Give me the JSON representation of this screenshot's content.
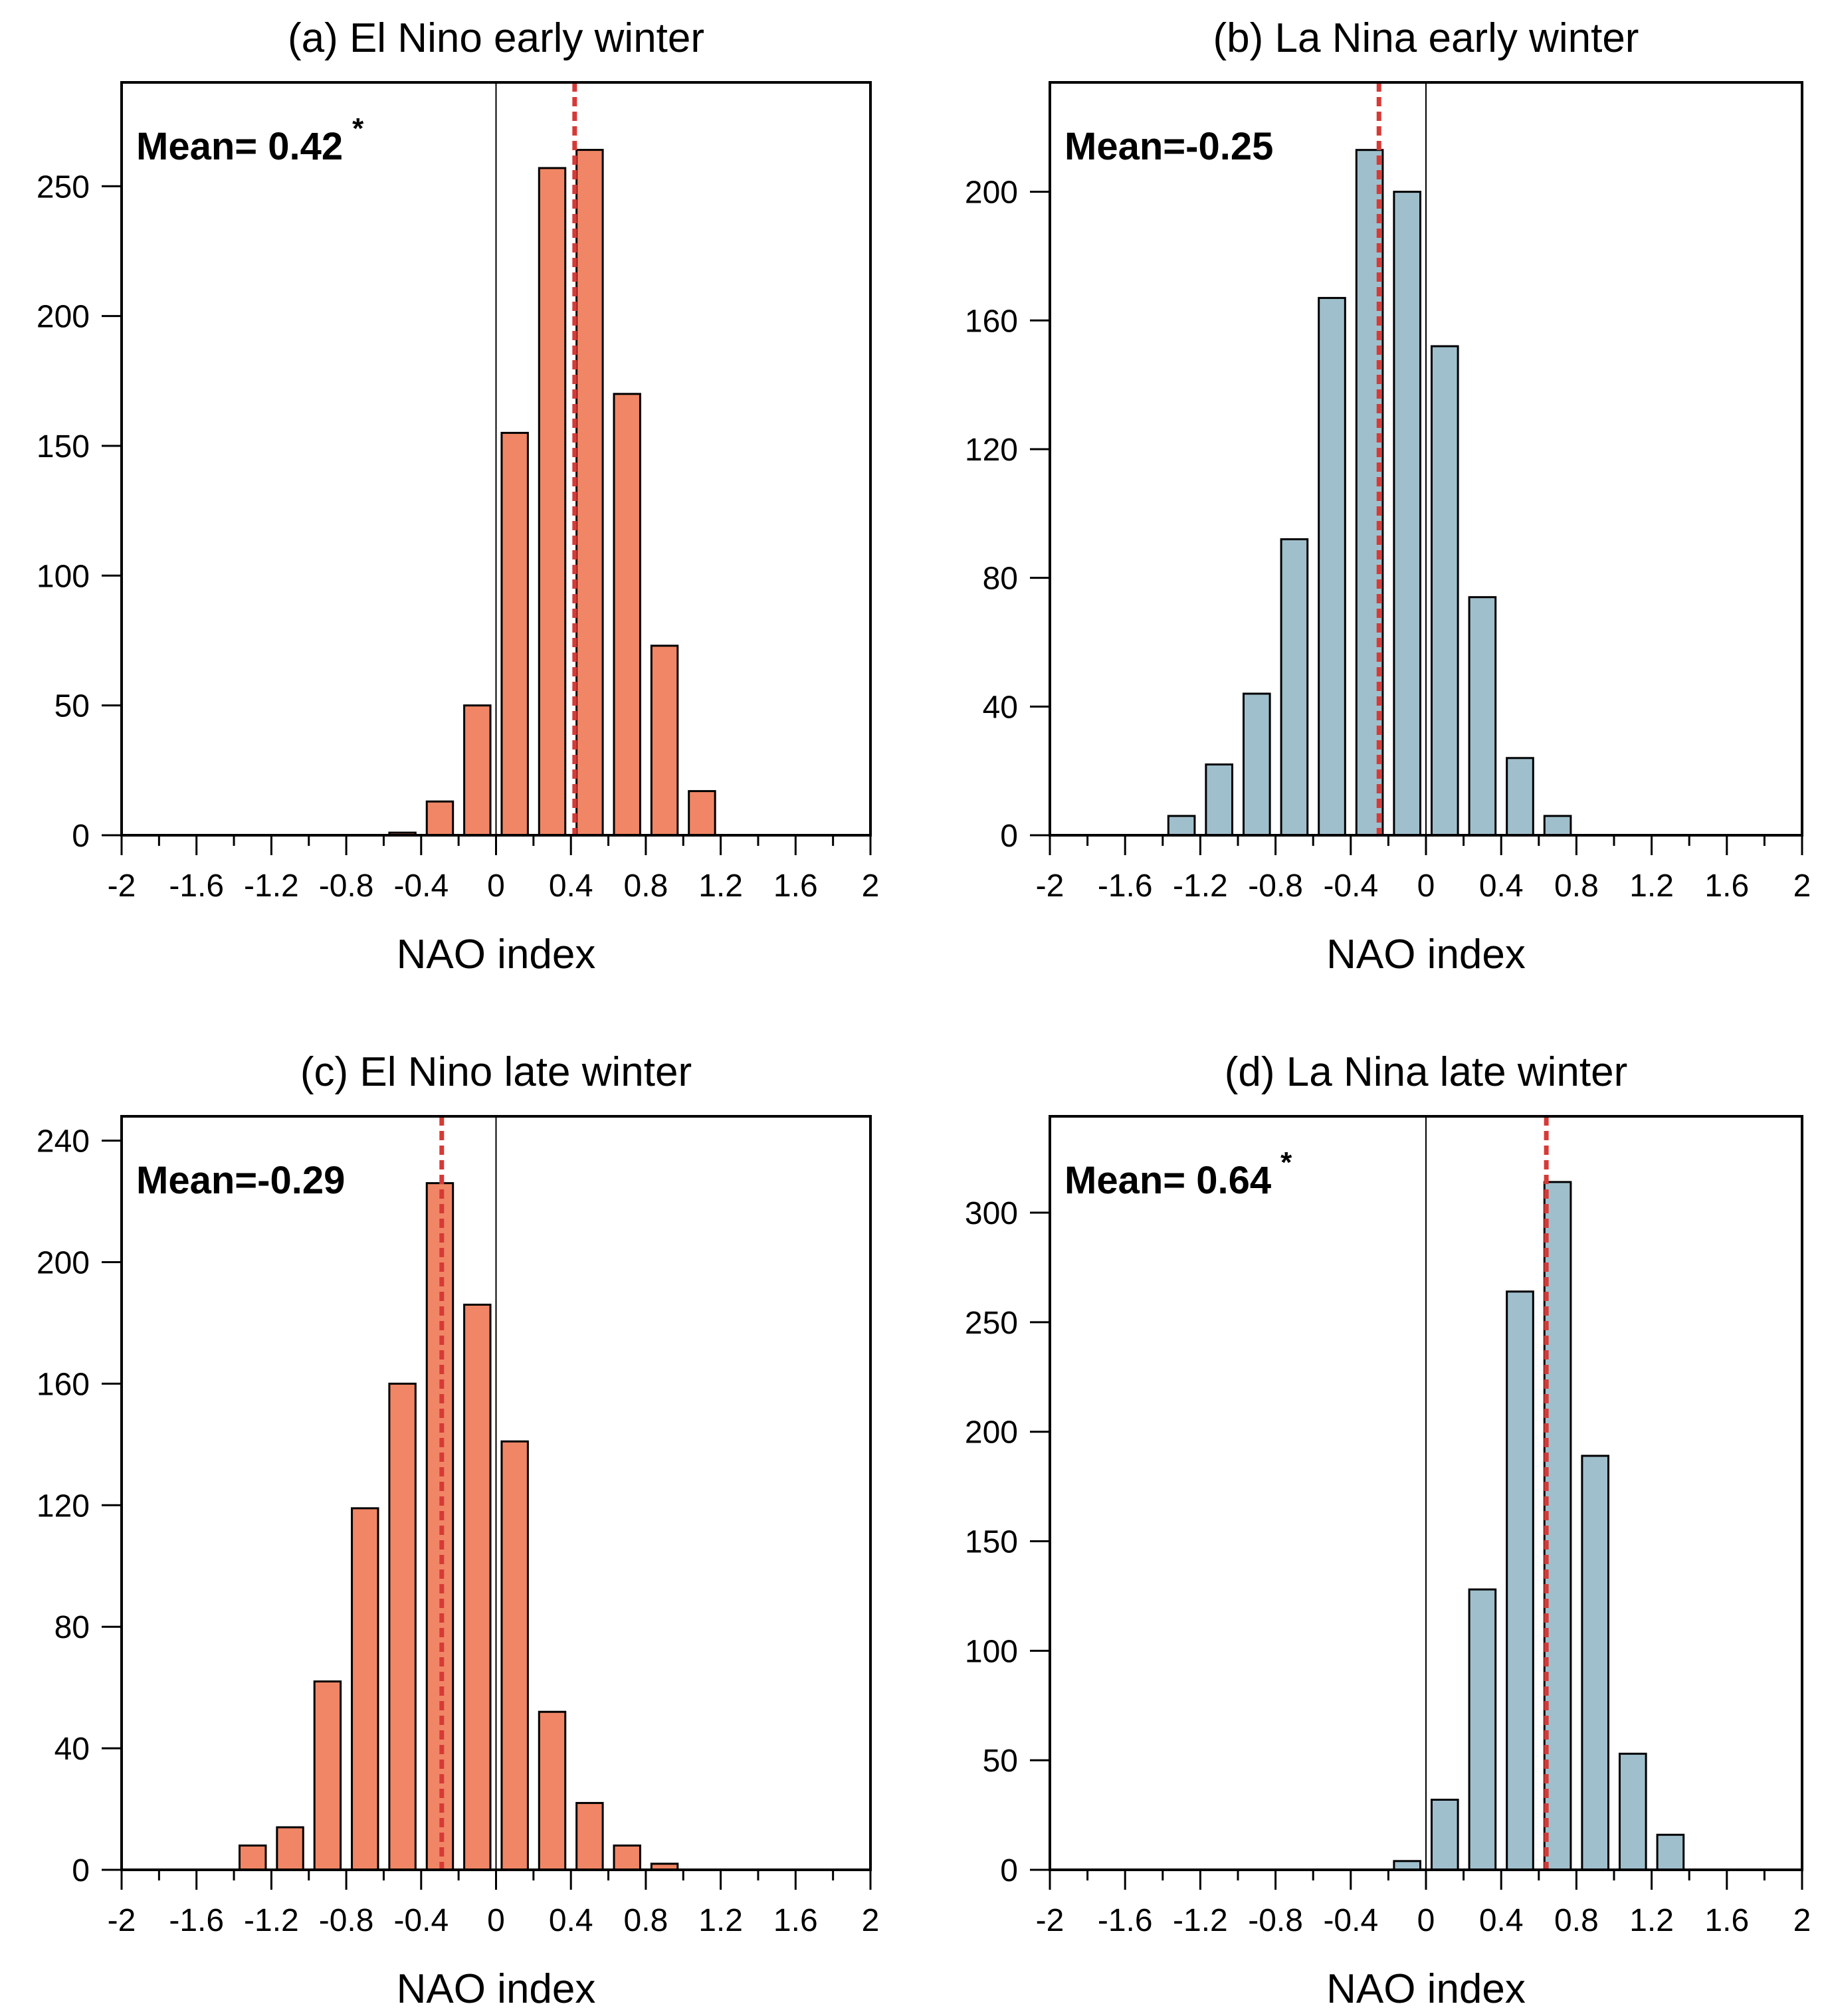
{
  "colors": {
    "el_nino_bar": "#f08665",
    "la_nina_bar": "#9fbfcc",
    "mean_line": "#d63a36",
    "axis": "#000000"
  },
  "chart_data": [
    {
      "id": "a",
      "type": "bar",
      "title": "(a) El Nino early winter",
      "xlabel": "NAO index",
      "ylabel": "",
      "xlim": [
        -2,
        2
      ],
      "ylim": [
        0,
        290
      ],
      "x_ticks": [
        "-2",
        "-1.6",
        "-1.2",
        "-0.8",
        "-0.4",
        "0",
        "0.4",
        "0.8",
        "1.2",
        "1.6",
        "2"
      ],
      "y_ticks": [
        "0",
        "50",
        "100",
        "150",
        "200",
        "250"
      ],
      "bin_centers": [
        -0.5,
        -0.3,
        -0.1,
        0.1,
        0.3,
        0.5,
        0.7,
        0.9,
        1.1
      ],
      "values": [
        1,
        13,
        50,
        155,
        257,
        264,
        170,
        73,
        17
      ],
      "mean": 0.42,
      "mean_label": "Mean= 0.42",
      "significance_marker": "*",
      "bar_color": "el_nino_bar"
    },
    {
      "id": "b",
      "type": "bar",
      "title": "(b) La Nina early winter",
      "xlabel": "NAO index",
      "ylabel": "",
      "xlim": [
        -2,
        2
      ],
      "ylim": [
        0,
        234
      ],
      "x_ticks": [
        "-2",
        "-1.6",
        "-1.2",
        "-0.8",
        "-0.4",
        "0",
        "0.4",
        "0.8",
        "1.2",
        "1.6",
        "2"
      ],
      "y_ticks": [
        "0",
        "40",
        "80",
        "120",
        "160",
        "200"
      ],
      "bin_centers": [
        -1.3,
        -1.1,
        -0.9,
        -0.7,
        -0.5,
        -0.3,
        -0.1,
        0.1,
        0.3,
        0.5,
        0.7
      ],
      "values": [
        6,
        22,
        44,
        92,
        167,
        213,
        200,
        152,
        74,
        24,
        6
      ],
      "mean": -0.25,
      "mean_label": "Mean=-0.25",
      "significance_marker": "",
      "bar_color": "la_nina_bar"
    },
    {
      "id": "c",
      "type": "bar",
      "title": "(c) El Nino late winter",
      "xlabel": "NAO index",
      "ylabel": "",
      "xlim": [
        -2,
        2
      ],
      "ylim": [
        0,
        248
      ],
      "x_ticks": [
        "-2",
        "-1.6",
        "-1.2",
        "-0.8",
        "-0.4",
        "0",
        "0.4",
        "0.8",
        "1.2",
        "1.6",
        "2"
      ],
      "y_ticks": [
        "0",
        "40",
        "80",
        "120",
        "160",
        "200",
        "240"
      ],
      "bin_centers": [
        -1.3,
        -1.1,
        -0.9,
        -0.7,
        -0.5,
        -0.3,
        -0.1,
        0.1,
        0.3,
        0.5,
        0.7,
        0.9
      ],
      "values": [
        8,
        14,
        62,
        119,
        160,
        226,
        186,
        141,
        52,
        22,
        8,
        2
      ],
      "mean": -0.29,
      "mean_label": "Mean=-0.29",
      "significance_marker": "",
      "bar_color": "el_nino_bar"
    },
    {
      "id": "d",
      "type": "bar",
      "title": "(d) La Nina late winter",
      "xlabel": "NAO index",
      "ylabel": "",
      "xlim": [
        -2,
        2
      ],
      "ylim": [
        0,
        344
      ],
      "x_ticks": [
        "-2",
        "-1.6",
        "-1.2",
        "-0.8",
        "-0.4",
        "0",
        "0.4",
        "0.8",
        "1.2",
        "1.6",
        "2"
      ],
      "y_ticks": [
        "0",
        "50",
        "100",
        "150",
        "200",
        "250",
        "300"
      ],
      "bin_centers": [
        -0.1,
        0.1,
        0.3,
        0.5,
        0.7,
        0.9,
        1.1,
        1.3
      ],
      "values": [
        4,
        32,
        128,
        264,
        314,
        189,
        53,
        16
      ],
      "mean": 0.64,
      "mean_label": "Mean= 0.64",
      "significance_marker": "*",
      "bar_color": "la_nina_bar"
    }
  ]
}
